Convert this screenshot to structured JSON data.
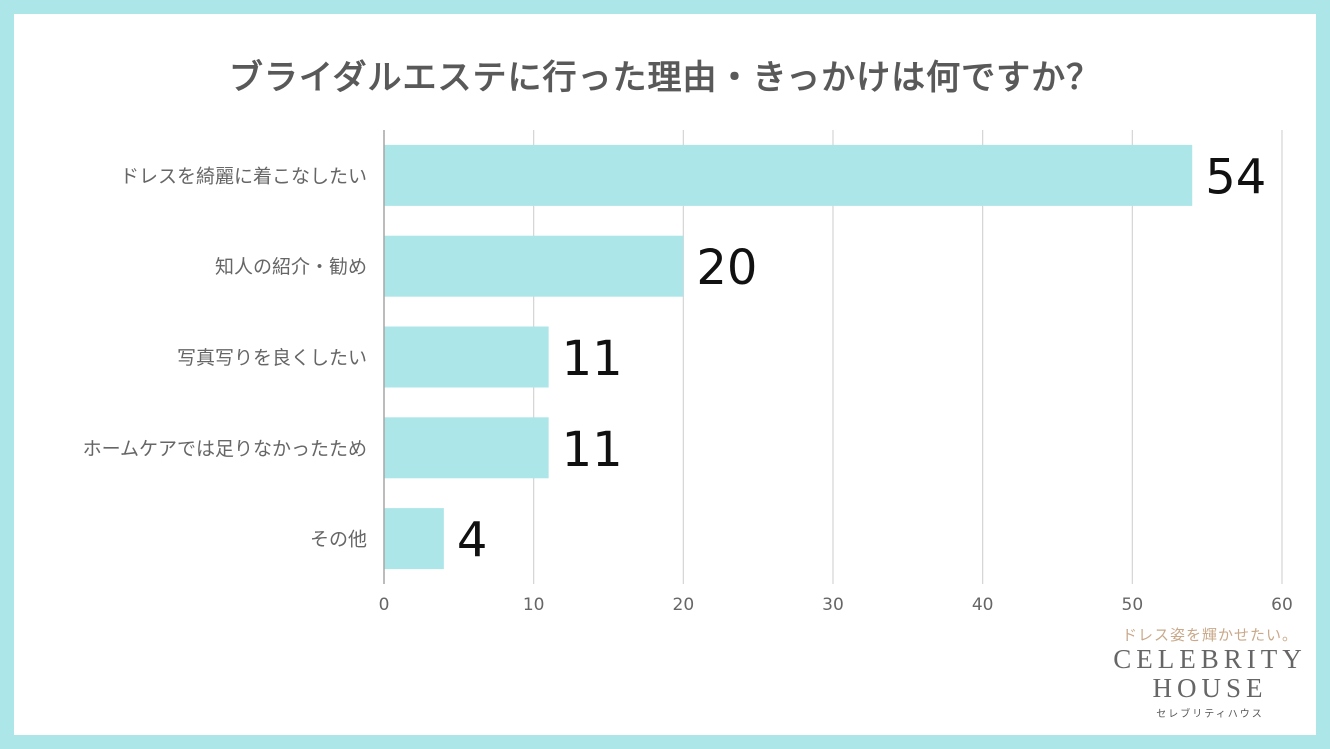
{
  "colors": {
    "background": "#ade6e9",
    "bar": "#ade6e9",
    "card": "#ffffff"
  },
  "chart_data": {
    "type": "bar",
    "orientation": "horizontal",
    "title": "ブライダルエステに行った理由・きっかけは何ですか？",
    "categories": [
      "ドレスを綺麗に着こなしたい",
      "知人の紹介・勧め",
      "写真写りを良くしたい",
      "ホームケアでは足りなかったため",
      "その他"
    ],
    "values": [
      54,
      20,
      11,
      11,
      4
    ],
    "xlim": [
      0,
      60
    ],
    "xticks": [
      "0",
      "10",
      "20",
      "30",
      "40",
      "50",
      "60"
    ],
    "grid": "vertical",
    "legend": "none"
  },
  "brand": {
    "tagline": "ドレス姿を輝かせたい。",
    "name_line1": "CELEBRITY",
    "name_line2": "HOUSE",
    "name_kana": "セレブリティハウス"
  }
}
